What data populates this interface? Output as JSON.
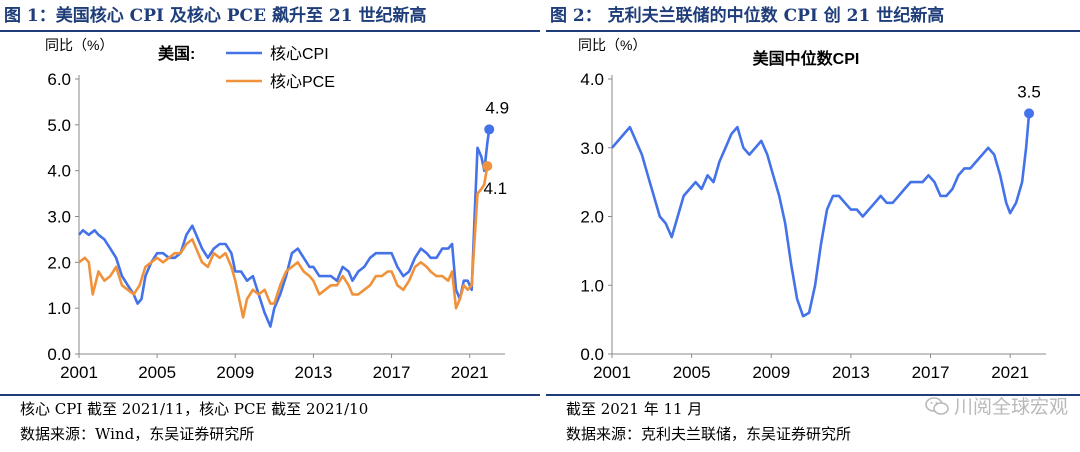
{
  "left": {
    "title": "图 1：美国核心 CPI 及核心 PCE 飙升至 21 世纪新高",
    "note": "核心 CPI 截至 2021/11，核心 PCE 截至 2021/10",
    "source": "数据来源：Wind，东吴证券研究所"
  },
  "right": {
    "title": "图 2： 克利夫兰联储的中位数 CPI 创 21 世纪新高",
    "note": "截至 2021 年 11 月",
    "source": "数据来源：克利夫兰联储，东吴证券研究所"
  },
  "watermark": {
    "text": "川阅全球宏观",
    "icon": "wechat-icon"
  },
  "chart_data": [
    {
      "type": "line",
      "ylabel": "同比（%）",
      "legend_title": "美国:",
      "legend_position": "top",
      "xlim": [
        2001,
        2022.5
      ],
      "ylim": [
        0,
        6
      ],
      "yticks": [
        "0.0",
        "1.0",
        "2.0",
        "3.0",
        "4.0",
        "5.0",
        "6.0"
      ],
      "xticks": [
        2001,
        2005,
        2009,
        2013,
        2017,
        2021
      ],
      "grid": false,
      "series": [
        {
          "name": "核心CPI",
          "color": "#4472e8",
          "points": [
            [
              2001.0,
              2.6
            ],
            [
              2001.2,
              2.7
            ],
            [
              2001.5,
              2.6
            ],
            [
              2001.8,
              2.7
            ],
            [
              2002.0,
              2.6
            ],
            [
              2002.3,
              2.5
            ],
            [
              2002.6,
              2.3
            ],
            [
              2002.9,
              2.1
            ],
            [
              2003.2,
              1.7
            ],
            [
              2003.5,
              1.5
            ],
            [
              2003.8,
              1.3
            ],
            [
              2004.0,
              1.1
            ],
            [
              2004.2,
              1.2
            ],
            [
              2004.4,
              1.7
            ],
            [
              2004.7,
              2.0
            ],
            [
              2005.0,
              2.2
            ],
            [
              2005.3,
              2.2
            ],
            [
              2005.6,
              2.1
            ],
            [
              2005.9,
              2.1
            ],
            [
              2006.2,
              2.2
            ],
            [
              2006.5,
              2.6
            ],
            [
              2006.8,
              2.8
            ],
            [
              2007.0,
              2.6
            ],
            [
              2007.3,
              2.3
            ],
            [
              2007.6,
              2.1
            ],
            [
              2007.9,
              2.3
            ],
            [
              2008.2,
              2.4
            ],
            [
              2008.5,
              2.4
            ],
            [
              2008.8,
              2.2
            ],
            [
              2009.0,
              1.8
            ],
            [
              2009.3,
              1.8
            ],
            [
              2009.6,
              1.6
            ],
            [
              2009.9,
              1.7
            ],
            [
              2010.2,
              1.3
            ],
            [
              2010.5,
              0.9
            ],
            [
              2010.8,
              0.6
            ],
            [
              2011.0,
              1.0
            ],
            [
              2011.3,
              1.3
            ],
            [
              2011.6,
              1.7
            ],
            [
              2011.9,
              2.2
            ],
            [
              2012.2,
              2.3
            ],
            [
              2012.5,
              2.1
            ],
            [
              2012.8,
              1.9
            ],
            [
              2013.0,
              1.9
            ],
            [
              2013.3,
              1.7
            ],
            [
              2013.6,
              1.7
            ],
            [
              2013.9,
              1.7
            ],
            [
              2014.2,
              1.6
            ],
            [
              2014.5,
              1.9
            ],
            [
              2014.8,
              1.8
            ],
            [
              2015.0,
              1.6
            ],
            [
              2015.3,
              1.8
            ],
            [
              2015.6,
              1.9
            ],
            [
              2015.9,
              2.1
            ],
            [
              2016.2,
              2.2
            ],
            [
              2016.5,
              2.2
            ],
            [
              2016.8,
              2.2
            ],
            [
              2017.0,
              2.2
            ],
            [
              2017.3,
              1.9
            ],
            [
              2017.6,
              1.7
            ],
            [
              2017.9,
              1.8
            ],
            [
              2018.2,
              2.1
            ],
            [
              2018.5,
              2.3
            ],
            [
              2018.8,
              2.2
            ],
            [
              2019.0,
              2.1
            ],
            [
              2019.3,
              2.1
            ],
            [
              2019.6,
              2.3
            ],
            [
              2019.9,
              2.3
            ],
            [
              2020.1,
              2.4
            ],
            [
              2020.3,
              1.4
            ],
            [
              2020.5,
              1.2
            ],
            [
              2020.7,
              1.6
            ],
            [
              2020.9,
              1.6
            ],
            [
              2021.1,
              1.4
            ],
            [
              2021.25,
              3.0
            ],
            [
              2021.4,
              4.5
            ],
            [
              2021.6,
              4.3
            ],
            [
              2021.75,
              4.0
            ],
            [
              2021.9,
              4.6
            ],
            [
              2022.0,
              4.9
            ]
          ]
        },
        {
          "name": "核心PCE",
          "color": "#f0923b",
          "points": [
            [
              2001.0,
              2.0
            ],
            [
              2001.3,
              2.1
            ],
            [
              2001.5,
              2.0
            ],
            [
              2001.7,
              1.3
            ],
            [
              2002.0,
              1.8
            ],
            [
              2002.3,
              1.6
            ],
            [
              2002.6,
              1.7
            ],
            [
              2002.9,
              1.9
            ],
            [
              2003.2,
              1.5
            ],
            [
              2003.5,
              1.4
            ],
            [
              2003.8,
              1.3
            ],
            [
              2004.1,
              1.5
            ],
            [
              2004.4,
              1.9
            ],
            [
              2004.7,
              2.0
            ],
            [
              2005.0,
              2.1
            ],
            [
              2005.3,
              2.0
            ],
            [
              2005.6,
              2.1
            ],
            [
              2005.9,
              2.2
            ],
            [
              2006.2,
              2.2
            ],
            [
              2006.5,
              2.4
            ],
            [
              2006.8,
              2.5
            ],
            [
              2007.0,
              2.3
            ],
            [
              2007.3,
              2.0
            ],
            [
              2007.6,
              1.9
            ],
            [
              2007.9,
              2.2
            ],
            [
              2008.2,
              2.1
            ],
            [
              2008.5,
              2.2
            ],
            [
              2008.8,
              1.9
            ],
            [
              2009.0,
              1.6
            ],
            [
              2009.2,
              1.2
            ],
            [
              2009.4,
              0.8
            ],
            [
              2009.6,
              1.2
            ],
            [
              2009.9,
              1.4
            ],
            [
              2010.2,
              1.3
            ],
            [
              2010.5,
              1.4
            ],
            [
              2010.8,
              1.1
            ],
            [
              2011.0,
              1.1
            ],
            [
              2011.3,
              1.5
            ],
            [
              2011.6,
              1.8
            ],
            [
              2011.9,
              1.9
            ],
            [
              2012.2,
              2.0
            ],
            [
              2012.5,
              1.8
            ],
            [
              2012.8,
              1.7
            ],
            [
              2013.0,
              1.6
            ],
            [
              2013.3,
              1.3
            ],
            [
              2013.6,
              1.4
            ],
            [
              2013.9,
              1.5
            ],
            [
              2014.2,
              1.5
            ],
            [
              2014.5,
              1.7
            ],
            [
              2014.8,
              1.5
            ],
            [
              2015.0,
              1.3
            ],
            [
              2015.3,
              1.3
            ],
            [
              2015.6,
              1.4
            ],
            [
              2015.9,
              1.5
            ],
            [
              2016.2,
              1.7
            ],
            [
              2016.5,
              1.7
            ],
            [
              2016.8,
              1.8
            ],
            [
              2017.0,
              1.8
            ],
            [
              2017.3,
              1.5
            ],
            [
              2017.6,
              1.4
            ],
            [
              2017.9,
              1.6
            ],
            [
              2018.2,
              1.9
            ],
            [
              2018.5,
              2.0
            ],
            [
              2018.8,
              1.9
            ],
            [
              2019.0,
              1.8
            ],
            [
              2019.3,
              1.7
            ],
            [
              2019.6,
              1.7
            ],
            [
              2019.9,
              1.6
            ],
            [
              2020.1,
              1.8
            ],
            [
              2020.3,
              1.0
            ],
            [
              2020.5,
              1.2
            ],
            [
              2020.7,
              1.5
            ],
            [
              2020.9,
              1.4
            ],
            [
              2021.1,
              1.5
            ],
            [
              2021.25,
              2.5
            ],
            [
              2021.4,
              3.5
            ],
            [
              2021.6,
              3.6
            ],
            [
              2021.75,
              3.7
            ],
            [
              2021.9,
              4.1
            ]
          ]
        }
      ],
      "annotations": [
        {
          "series": "核心CPI",
          "x": 2022.0,
          "y": 4.9,
          "label": "4.9"
        },
        {
          "series": "核心PCE",
          "x": 2021.9,
          "y": 4.1,
          "label": "4.1"
        }
      ]
    },
    {
      "type": "line",
      "ylabel": "同比（%）",
      "title": "美国中位数CPI",
      "xlim": [
        2001,
        2022.5
      ],
      "ylim": [
        0,
        4
      ],
      "yticks": [
        "0.0",
        "1.0",
        "2.0",
        "3.0",
        "4.0"
      ],
      "xticks": [
        2001,
        2005,
        2009,
        2013,
        2017,
        2021
      ],
      "grid": false,
      "series": [
        {
          "color": "#4472e8",
          "points": [
            [
              2001.0,
              3.0
            ],
            [
              2001.3,
              3.1
            ],
            [
              2001.6,
              3.2
            ],
            [
              2001.9,
              3.3
            ],
            [
              2002.2,
              3.1
            ],
            [
              2002.5,
              2.9
            ],
            [
              2002.8,
              2.6
            ],
            [
              2003.1,
              2.3
            ],
            [
              2003.4,
              2.0
            ],
            [
              2003.7,
              1.9
            ],
            [
              2004.0,
              1.7
            ],
            [
              2004.3,
              2.0
            ],
            [
              2004.6,
              2.3
            ],
            [
              2004.9,
              2.4
            ],
            [
              2005.2,
              2.5
            ],
            [
              2005.5,
              2.4
            ],
            [
              2005.8,
              2.6
            ],
            [
              2006.1,
              2.5
            ],
            [
              2006.4,
              2.8
            ],
            [
              2006.7,
              3.0
            ],
            [
              2007.0,
              3.2
            ],
            [
              2007.3,
              3.3
            ],
            [
              2007.6,
              3.0
            ],
            [
              2007.9,
              2.9
            ],
            [
              2008.2,
              3.0
            ],
            [
              2008.5,
              3.1
            ],
            [
              2008.8,
              2.9
            ],
            [
              2009.1,
              2.6
            ],
            [
              2009.4,
              2.3
            ],
            [
              2009.7,
              1.9
            ],
            [
              2010.0,
              1.3
            ],
            [
              2010.3,
              0.8
            ],
            [
              2010.6,
              0.55
            ],
            [
              2010.9,
              0.6
            ],
            [
              2011.2,
              1.0
            ],
            [
              2011.5,
              1.6
            ],
            [
              2011.8,
              2.1
            ],
            [
              2012.1,
              2.3
            ],
            [
              2012.4,
              2.3
            ],
            [
              2012.7,
              2.2
            ],
            [
              2013.0,
              2.1
            ],
            [
              2013.3,
              2.1
            ],
            [
              2013.6,
              2.0
            ],
            [
              2013.9,
              2.1
            ],
            [
              2014.2,
              2.2
            ],
            [
              2014.5,
              2.3
            ],
            [
              2014.8,
              2.2
            ],
            [
              2015.1,
              2.2
            ],
            [
              2015.4,
              2.3
            ],
            [
              2015.7,
              2.4
            ],
            [
              2016.0,
              2.5
            ],
            [
              2016.3,
              2.5
            ],
            [
              2016.6,
              2.5
            ],
            [
              2016.9,
              2.6
            ],
            [
              2017.2,
              2.5
            ],
            [
              2017.5,
              2.3
            ],
            [
              2017.8,
              2.3
            ],
            [
              2018.1,
              2.4
            ],
            [
              2018.4,
              2.6
            ],
            [
              2018.7,
              2.7
            ],
            [
              2019.0,
              2.7
            ],
            [
              2019.3,
              2.8
            ],
            [
              2019.6,
              2.9
            ],
            [
              2019.9,
              3.0
            ],
            [
              2020.2,
              2.9
            ],
            [
              2020.5,
              2.6
            ],
            [
              2020.8,
              2.2
            ],
            [
              2021.0,
              2.05
            ],
            [
              2021.3,
              2.2
            ],
            [
              2021.6,
              2.5
            ],
            [
              2021.8,
              3.0
            ],
            [
              2021.95,
              3.5
            ]
          ]
        }
      ],
      "annotations": [
        {
          "x": 2021.95,
          "y": 3.5,
          "label": "3.5"
        }
      ]
    }
  ]
}
